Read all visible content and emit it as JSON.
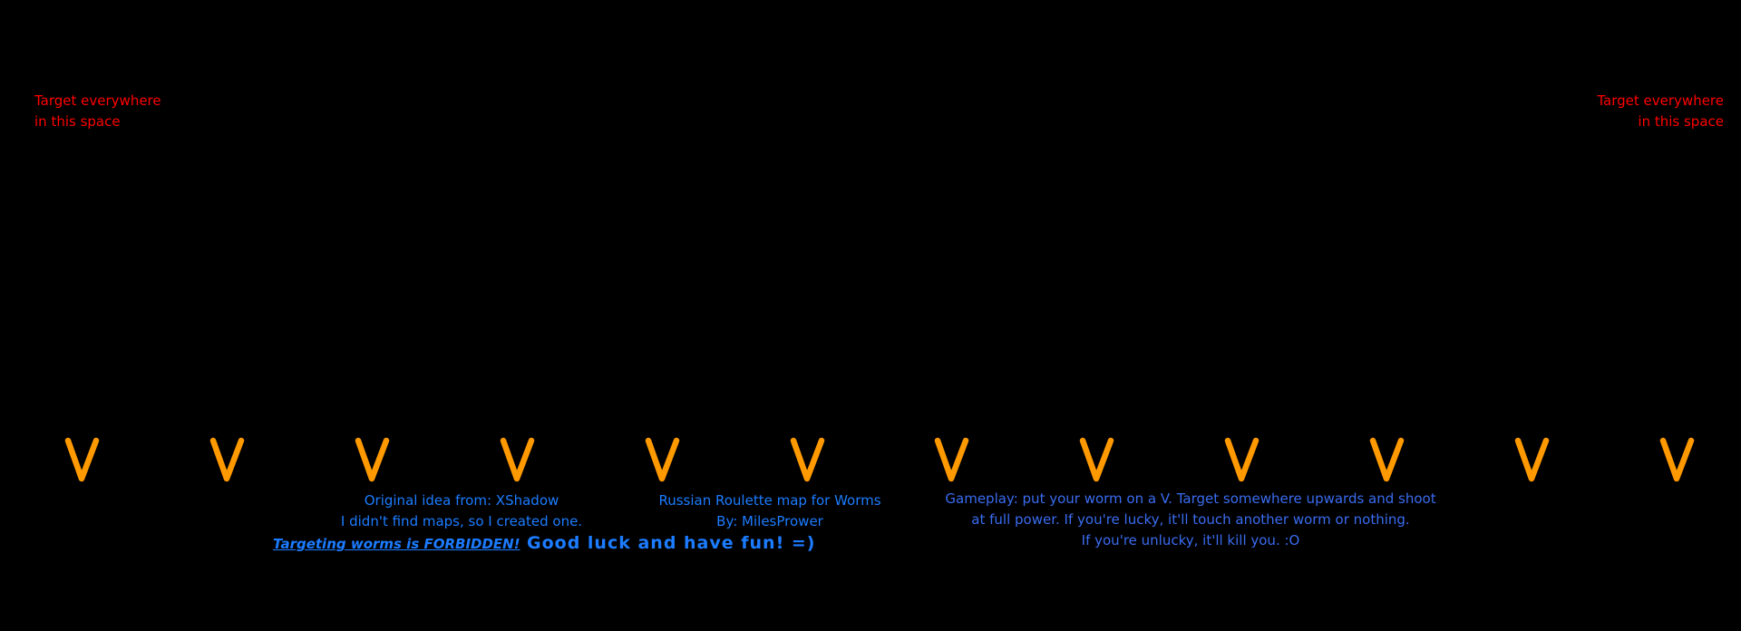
{
  "target_hint_left": [
    "Target everywhere",
    "in this space"
  ],
  "target_hint_right": [
    "Target everywhere",
    "in this space"
  ],
  "markers": {
    "glyph": "V",
    "count": 12,
    "color": "#ff9900"
  },
  "credits": {
    "lines": [
      "Original idea from: XShadow",
      "I didn't find maps, so I created one."
    ]
  },
  "title_block": {
    "lines": [
      "Russian Roulette map for Worms",
      "By: MilesPrower"
    ]
  },
  "warning": "Targeting worms is FORBIDDEN!",
  "good_luck": "Good luck and have fun! =)",
  "gameplay": {
    "lines": [
      "Gameplay: put your worm on a V. Target somewhere upwards and shoot",
      "at full power. If you're lucky, it'll touch another worm or nothing.",
      "If you're unlucky, it'll kill you. :O"
    ]
  },
  "colors": {
    "background": "#000000",
    "hint": "#ff0000",
    "text": "#1c7cff",
    "gameplay": "#3a6cf0",
    "marker": "#ff9900"
  }
}
